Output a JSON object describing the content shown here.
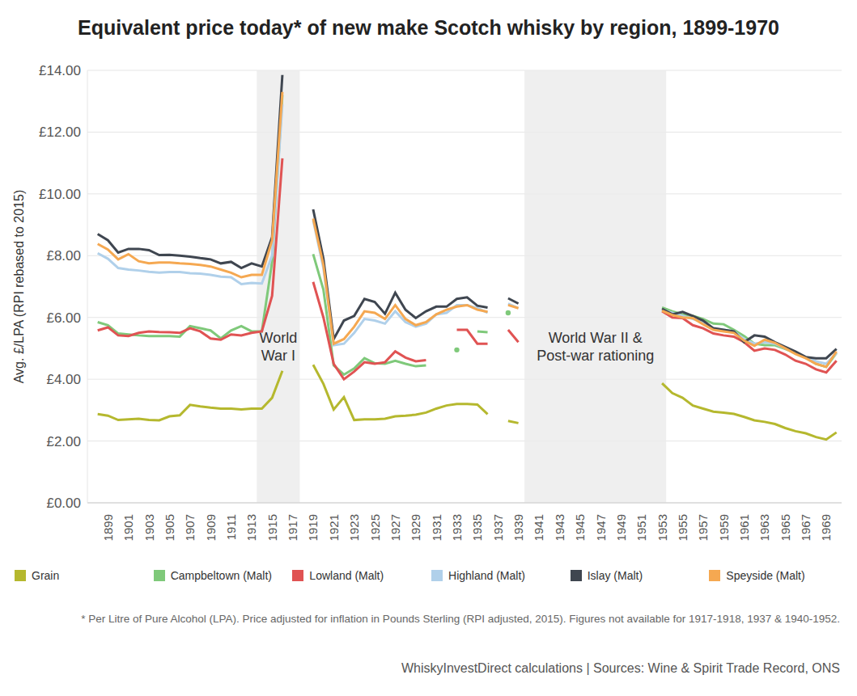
{
  "chart_data": {
    "type": "line",
    "title": "Equivalent price today* of new make Scotch whisky by region, 1899-1970",
    "y_label": "Avg. £/LPA (RPI rebased to 2015)",
    "footnote": "* Per Litre of Pure Alcohol (LPA). Price adjusted for inflation in Pounds Sterling (RPI adjusted, 2015). Figures not available for 1917-1918, 1937 & 1940-1952.",
    "source": "WhiskyInvestDirect calculations | Sources: Wine & Spirit Trade Record, ONS",
    "x": [
      1898,
      1899,
      1900,
      1901,
      1902,
      1903,
      1904,
      1905,
      1906,
      1907,
      1908,
      1909,
      1910,
      1911,
      1912,
      1913,
      1914,
      1915,
      1916,
      1917,
      1918,
      1919,
      1920,
      1921,
      1922,
      1923,
      1924,
      1925,
      1926,
      1927,
      1928,
      1929,
      1930,
      1931,
      1932,
      1933,
      1934,
      1935,
      1936,
      1937,
      1938,
      1939,
      1940,
      1941,
      1942,
      1943,
      1944,
      1945,
      1946,
      1947,
      1948,
      1949,
      1950,
      1951,
      1952,
      1953,
      1954,
      1955,
      1956,
      1957,
      1958,
      1959,
      1960,
      1961,
      1962,
      1963,
      1964,
      1965,
      1966,
      1967,
      1968,
      1969,
      1970
    ],
    "xlim": [
      1897,
      1970.5
    ],
    "xticks": [
      1899,
      1901,
      1903,
      1905,
      1907,
      1909,
      1911,
      1913,
      1915,
      1917,
      1919,
      1921,
      1923,
      1925,
      1927,
      1929,
      1931,
      1933,
      1935,
      1937,
      1939,
      1941,
      1943,
      1945,
      1947,
      1949,
      1951,
      1953,
      1955,
      1957,
      1959,
      1961,
      1963,
      1965,
      1967,
      1969
    ],
    "ylim": [
      0,
      14
    ],
    "yticks": [
      {
        "value": 0,
        "label": "£0.00"
      },
      {
        "value": 2,
        "label": "£2.00"
      },
      {
        "value": 4,
        "label": "£4.00"
      },
      {
        "value": 6,
        "label": "£6.00"
      },
      {
        "value": 8,
        "label": "£8.00"
      },
      {
        "value": 10,
        "label": "£10.00"
      },
      {
        "value": 12,
        "label": "£12.00"
      },
      {
        "value": 14,
        "label": "£14.00"
      }
    ],
    "grid": true,
    "legend": "bottom",
    "annotations": [
      {
        "lines": [
          "World",
          "War I"
        ],
        "x_start": 1913.5,
        "x_end": 1917.7
      },
      {
        "lines": [
          "World War II &",
          "Post-war rationing"
        ],
        "x_start": 1939.6,
        "x_end": 1953.4
      }
    ],
    "series": [
      {
        "name": "Grain",
        "color": "#b5b82e",
        "values": [
          2.87,
          2.82,
          2.68,
          2.7,
          2.72,
          2.68,
          2.67,
          2.8,
          2.83,
          3.17,
          3.12,
          3.08,
          3.05,
          3.05,
          3.02,
          3.05,
          3.05,
          3.4,
          4.27,
          null,
          null,
          4.47,
          3.85,
          3.02,
          3.42,
          2.68,
          2.7,
          2.7,
          2.72,
          2.8,
          2.82,
          2.85,
          2.92,
          3.05,
          3.15,
          3.2,
          3.2,
          3.18,
          2.87,
          null,
          2.65,
          2.58,
          null,
          null,
          null,
          null,
          null,
          null,
          null,
          null,
          null,
          null,
          null,
          null,
          null,
          3.87,
          3.55,
          3.4,
          3.15,
          3.05,
          2.95,
          2.92,
          2.88,
          2.78,
          2.67,
          2.62,
          2.55,
          2.42,
          2.32,
          2.25,
          2.13,
          2.05,
          2.28
        ]
      },
      {
        "name": "Campbeltown (Malt)",
        "color": "#7fc97a",
        "values": [
          5.85,
          5.75,
          5.48,
          5.45,
          5.42,
          5.4,
          5.4,
          5.4,
          5.38,
          5.72,
          5.65,
          5.58,
          5.32,
          5.58,
          5.72,
          5.55,
          5.55,
          7.8,
          13.2,
          null,
          null,
          8.05,
          6.9,
          4.45,
          4.15,
          4.35,
          4.68,
          4.52,
          4.5,
          4.6,
          4.5,
          4.42,
          4.45,
          null,
          null,
          4.95,
          null,
          5.55,
          5.52,
          null,
          6.15,
          null,
          null,
          null,
          null,
          null,
          null,
          null,
          null,
          null,
          null,
          null,
          null,
          null,
          null,
          6.32,
          6.2,
          6.1,
          6.05,
          5.95,
          5.8,
          5.78,
          5.6,
          5.4,
          5.15,
          5.1,
          5.1,
          4.98,
          4.85,
          4.7,
          4.5,
          4.4,
          4.85
        ]
      },
      {
        "name": "Lowland (Malt)",
        "color": "#e05353",
        "values": [
          5.58,
          5.68,
          5.42,
          5.4,
          5.5,
          5.55,
          5.53,
          5.52,
          5.5,
          5.65,
          5.55,
          5.32,
          5.28,
          5.45,
          5.42,
          5.5,
          5.55,
          6.7,
          11.15,
          null,
          null,
          7.15,
          6.0,
          4.5,
          4.0,
          4.25,
          4.55,
          4.5,
          4.55,
          4.9,
          4.7,
          4.58,
          4.62,
          null,
          null,
          5.6,
          5.6,
          5.15,
          5.15,
          null,
          5.6,
          5.2,
          null,
          null,
          null,
          null,
          null,
          null,
          null,
          null,
          null,
          null,
          null,
          null,
          null,
          6.2,
          6.0,
          5.98,
          5.75,
          5.65,
          5.48,
          5.42,
          5.38,
          5.2,
          4.92,
          5.0,
          4.95,
          4.8,
          4.6,
          4.5,
          4.32,
          4.22,
          4.6
        ]
      },
      {
        "name": "Highland (Malt)",
        "color": "#b0d0ea",
        "values": [
          8.08,
          7.9,
          7.6,
          7.55,
          7.52,
          7.48,
          7.45,
          7.47,
          7.47,
          7.43,
          7.42,
          7.38,
          7.32,
          7.3,
          7.08,
          7.12,
          7.1,
          8.0,
          12.9,
          null,
          null,
          9.15,
          7.6,
          5.1,
          5.15,
          5.5,
          5.95,
          5.9,
          5.8,
          6.2,
          5.85,
          5.7,
          5.8,
          6.1,
          6.15,
          6.4,
          6.4,
          6.3,
          6.15,
          null,
          6.45,
          6.3,
          null,
          null,
          null,
          null,
          null,
          null,
          null,
          null,
          null,
          null,
          null,
          null,
          null,
          6.25,
          6.15,
          6.05,
          5.95,
          5.85,
          5.65,
          5.6,
          5.55,
          5.3,
          5.15,
          5.2,
          5.15,
          5.0,
          4.85,
          4.72,
          4.58,
          4.5,
          4.85
        ]
      },
      {
        "name": "Islay (Malt)",
        "color": "#3f4650",
        "values": [
          8.7,
          8.5,
          8.1,
          8.22,
          8.22,
          8.18,
          8.02,
          8.03,
          8.0,
          7.97,
          7.92,
          7.88,
          7.75,
          7.8,
          7.6,
          7.75,
          7.65,
          8.6,
          13.85,
          null,
          null,
          9.5,
          7.9,
          5.3,
          5.9,
          6.05,
          6.6,
          6.5,
          6.12,
          6.8,
          6.25,
          5.98,
          6.2,
          6.35,
          6.35,
          6.6,
          6.65,
          6.38,
          6.32,
          null,
          6.62,
          6.45,
          null,
          null,
          null,
          null,
          null,
          null,
          null,
          null,
          null,
          null,
          null,
          null,
          null,
          6.28,
          6.1,
          6.18,
          6.05,
          5.9,
          5.65,
          5.6,
          5.55,
          5.2,
          5.42,
          5.38,
          5.2,
          5.05,
          4.9,
          4.72,
          4.68,
          4.68,
          4.98
        ]
      },
      {
        "name": "Speyside (Malt)",
        "color": "#f5a851",
        "values": [
          8.38,
          8.2,
          7.88,
          8.05,
          7.82,
          7.75,
          7.78,
          7.78,
          7.75,
          7.73,
          7.7,
          7.65,
          7.55,
          7.45,
          7.3,
          7.38,
          7.38,
          8.5,
          13.3,
          null,
          null,
          9.2,
          7.7,
          5.15,
          5.3,
          5.7,
          6.2,
          6.15,
          5.95,
          6.4,
          5.95,
          5.75,
          5.85,
          6.1,
          6.25,
          6.35,
          6.4,
          6.25,
          6.18,
          null,
          6.4,
          6.3,
          null,
          null,
          null,
          null,
          null,
          null,
          null,
          null,
          null,
          null,
          null,
          null,
          null,
          6.22,
          6.08,
          6.0,
          5.98,
          5.78,
          5.6,
          5.55,
          5.5,
          5.25,
          5.08,
          5.28,
          5.18,
          5.0,
          4.82,
          4.68,
          4.5,
          4.4,
          4.9
        ]
      }
    ]
  }
}
